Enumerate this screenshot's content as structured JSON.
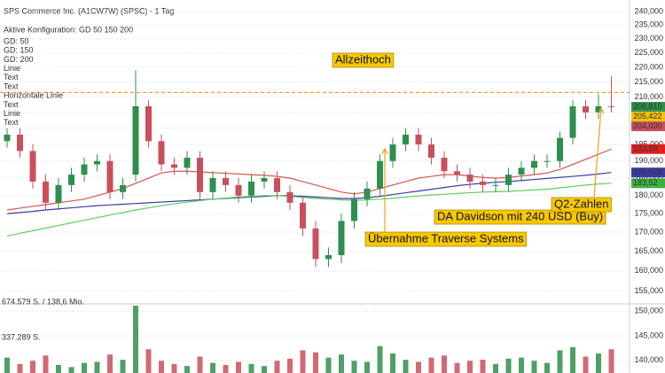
{
  "chart_data": {
    "type": "candlestick",
    "title": "SPS Commerce Inc. (A1CW7W) (SPSC) - 1 Tag",
    "subtitle": "Aktive Konfiguration: GD 50 150 200",
    "log_scale": true,
    "grid": true,
    "up_color": "#2f8f4e",
    "down_color": "#c8505c",
    "open": [
      196,
      198,
      193,
      184,
      178,
      183,
      186,
      189,
      190,
      181,
      186,
      207,
      196,
      189,
      188,
      191,
      181,
      185,
      183,
      180,
      184,
      185,
      181,
      178,
      171,
      163,
      164,
      173,
      179,
      182,
      190,
      195,
      198,
      195,
      191,
      187,
      186,
      184,
      183,
      183,
      186,
      188,
      190,
      190,
      197,
      207,
      205,
      207
    ],
    "high": [
      200,
      200,
      195,
      186,
      185,
      188,
      191,
      192,
      192,
      185,
      219,
      209,
      198,
      191,
      193,
      193,
      187,
      187,
      185,
      186,
      187,
      187,
      183,
      180,
      173,
      166,
      175,
      181,
      184,
      192,
      197,
      200,
      200,
      197,
      193,
      189,
      188,
      186,
      185,
      188,
      190,
      192,
      192,
      199,
      209,
      209,
      211,
      217
    ],
    "low": [
      194,
      191,
      182,
      176,
      176,
      181,
      184,
      187,
      179,
      179,
      184,
      194,
      187,
      186,
      186,
      179,
      179,
      181,
      178,
      178,
      182,
      179,
      176,
      169,
      161,
      161,
      162,
      171,
      177,
      180,
      188,
      193,
      193,
      189,
      185,
      184,
      182,
      181,
      181,
      181,
      184,
      186,
      188,
      188,
      195,
      203,
      203,
      205
    ],
    "close": [
      198,
      193,
      184,
      178,
      183,
      186,
      189,
      190,
      181,
      183,
      207,
      196,
      189,
      188,
      191,
      181,
      185,
      183,
      180,
      184,
      185,
      181,
      178,
      171,
      163,
      164,
      173,
      179,
      182,
      190,
      195,
      198,
      195,
      191,
      187,
      186,
      184,
      183,
      183,
      186,
      188,
      190,
      190,
      197,
      207,
      205,
      207,
      206.815
    ],
    "volume": [
      180000,
      120000,
      150000,
      200000,
      110000,
      90000,
      130000,
      140000,
      210000,
      160000,
      674579,
      260000,
      150000,
      120000,
      100000,
      190000,
      130000,
      110000,
      140000,
      120000,
      100000,
      150000,
      170000,
      250000,
      230000,
      180000,
      210000,
      150000,
      140000,
      290000,
      220000,
      160000,
      140000,
      180000,
      200000,
      130000,
      150000,
      160000,
      120000,
      170000,
      180000,
      150000,
      130000,
      250000,
      280000,
      190000,
      220000,
      260000
    ],
    "series": [
      {
        "name": "GD: 50",
        "color": "#d9534f",
        "values": [
          176,
          176.5,
          177,
          177.5,
          178,
          178.5,
          179,
          180,
          181,
          182,
          183.5,
          185,
          186.5,
          187,
          187,
          186.8,
          186.6,
          186.4,
          186.2,
          186,
          185.8,
          185.5,
          185,
          184,
          183,
          182,
          181,
          180.5,
          181,
          182,
          183,
          184,
          185,
          185.5,
          186,
          186,
          185.6,
          185.2,
          185,
          185.2,
          185.6,
          186,
          186.5,
          187.5,
          189,
          190.5,
          192,
          193.59
        ]
      },
      {
        "name": "GD: 150",
        "color": "#3b3ba6",
        "values": [
          175,
          175.3,
          175.6,
          176,
          176.3,
          176.6,
          176.9,
          177.2,
          177.4,
          177.6,
          177.8,
          178,
          178.2,
          178.4,
          178.6,
          178.8,
          179,
          179.2,
          179.4,
          179.6,
          179.8,
          180,
          180,
          179.8,
          179.6,
          179.4,
          179.2,
          179.2,
          179.4,
          179.8,
          180.3,
          180.8,
          181.3,
          181.8,
          182.3,
          182.8,
          183.2,
          183.5,
          183.8,
          184,
          184.3,
          184.6,
          184.9,
          185.2,
          185.5,
          185.8,
          186.2,
          186.628
        ]
      },
      {
        "name": "GD: 200",
        "color": "#5ccf5c",
        "values": [
          169,
          169.7,
          170.4,
          171.1,
          171.8,
          172.5,
          173.2,
          173.9,
          174.6,
          175.3,
          176,
          176.6,
          177.2,
          177.7,
          178.2,
          178.6,
          179,
          179.3,
          179.6,
          179.8,
          180,
          180,
          179.8,
          179.5,
          179.2,
          179,
          178.8,
          178.7,
          178.8,
          179,
          179.3,
          179.6,
          179.9,
          180.2,
          180.4,
          180.6,
          180.8,
          181,
          181.1,
          181.2,
          181.4,
          181.6,
          181.8,
          182.2,
          182.6,
          183,
          183.3,
          183.52
        ]
      }
    ],
    "legend_extra": [
      {
        "name": "Linie",
        "color": "#f0a020"
      },
      {
        "name": "Text",
        "color": "#333333"
      },
      {
        "name": "Text",
        "color": "#333333"
      },
      {
        "name": "Horizontale Linie",
        "color": "#f0a020"
      },
      {
        "name": "Text",
        "color": "#333333"
      },
      {
        "name": "Linie",
        "color": "#f0a020"
      },
      {
        "name": "Text",
        "color": "#333333"
      }
    ],
    "horizontal_line": {
      "value": 211.5,
      "color": "#f0a020"
    },
    "ylim": [
      152.6,
      244.4
    ],
    "yticks": [
      {
        "value": 240,
        "label": "240,000"
      },
      {
        "value": 235,
        "label": "235,000"
      },
      {
        "value": 230,
        "label": "230,000"
      },
      {
        "value": 225,
        "label": "225,000"
      },
      {
        "value": 220,
        "label": "220,000"
      },
      {
        "value": 215,
        "label": "215,000"
      },
      {
        "value": 210,
        "label": "210,000"
      },
      {
        "value": 205,
        "label": "205,000"
      },
      {
        "value": 200,
        "label": "200,000"
      },
      {
        "value": 195,
        "label": "195,000"
      },
      {
        "value": 190,
        "label": "190,000"
      },
      {
        "value": 185,
        "label": "185,000"
      },
      {
        "value": 180,
        "label": "180,000"
      },
      {
        "value": 175,
        "label": "175,000"
      },
      {
        "value": 170,
        "label": "170,000"
      },
      {
        "value": 165,
        "label": "165,000"
      },
      {
        "value": 160,
        "label": "160,000"
      },
      {
        "value": 155,
        "label": "155,000"
      }
    ],
    "y2lim": [
      137.4,
      151.5
    ],
    "y2ticks": [
      {
        "value": 150,
        "label": "150,000"
      },
      {
        "value": 145,
        "label": "145,000"
      },
      {
        "value": 140,
        "label": "140,000"
      }
    ],
    "volume_lim": [
      0,
      674579
    ],
    "volume_ticks": [
      {
        "value": 674579,
        "label": "674.579 S. / 138,6 Mio."
      },
      {
        "value": 337289,
        "label": "337.289 S."
      }
    ],
    "price_labels": [
      {
        "value": 206.815,
        "label": "206,815",
        "color": "#2f8f4e"
      },
      {
        "value": 205.422,
        "label": "205,422",
        "color": "#f2c200"
      },
      {
        "value": 204.03,
        "label": "204,030",
        "color": "#c8505c"
      },
      {
        "value": 193.59,
        "label": "193,59",
        "color": "#e02020"
      },
      {
        "value": 186.628,
        "label": "186,628",
        "color": "#3b3ba6"
      },
      {
        "value": 183.52,
        "label": "183,52",
        "color": "#3fb03f"
      }
    ],
    "annotations": [
      "Allzeithoch",
      "Übernahme Traverse Systems",
      "DA Davidson mit 240 USD (Buy)",
      "Q2-Zahlen"
    ]
  }
}
